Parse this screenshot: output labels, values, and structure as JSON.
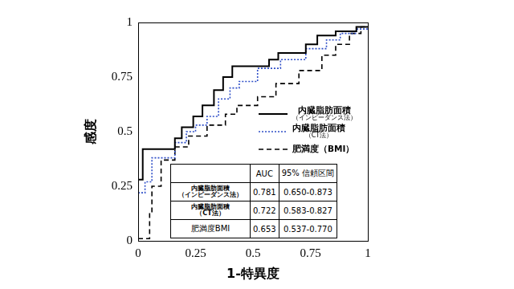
{
  "chart_data": {
    "type": "line",
    "x_label": "1-特異度",
    "y_label": "感度",
    "xlim": [
      0,
      1
    ],
    "ylim": [
      0,
      1
    ],
    "xticks": [
      0,
      0.25,
      0.5,
      0.75,
      1
    ],
    "yticks": [
      0,
      0.25,
      0.5,
      0.75,
      1
    ],
    "grid": false,
    "legend": "right",
    "series": [
      {
        "name": "内臓脂肪面積（インピーダンス法）",
        "color": "#000000",
        "line_style": "solid",
        "x": [
          0,
          0.02,
          0.02,
          0.16,
          0.16,
          0.19,
          0.19,
          0.24,
          0.24,
          0.28,
          0.28,
          0.33,
          0.33,
          0.37,
          0.37,
          0.41,
          0.41,
          0.57,
          0.57,
          0.61,
          0.61,
          0.73,
          0.73,
          0.78,
          0.78,
          0.86,
          0.86,
          0.95,
          0.95,
          1
        ],
        "values": [
          0.28,
          0.28,
          0.42,
          0.42,
          0.47,
          0.47,
          0.52,
          0.52,
          0.57,
          0.57,
          0.62,
          0.62,
          0.69,
          0.69,
          0.75,
          0.75,
          0.8,
          0.8,
          0.83,
          0.83,
          0.86,
          0.86,
          0.9,
          0.9,
          0.94,
          0.94,
          0.96,
          0.96,
          0.98,
          0.98
        ]
      },
      {
        "name": "内臓脂肪面積（CT法）",
        "color": "#2f4fc8",
        "line_style": "dotted",
        "x": [
          0,
          0.03,
          0.03,
          0.06,
          0.06,
          0.16,
          0.16,
          0.21,
          0.21,
          0.25,
          0.25,
          0.3,
          0.3,
          0.35,
          0.35,
          0.4,
          0.4,
          0.44,
          0.44,
          0.52,
          0.52,
          0.62,
          0.62,
          0.73,
          0.73,
          0.82,
          0.82,
          0.88,
          0.88,
          0.95,
          0.95,
          1
        ],
        "values": [
          0.22,
          0.22,
          0.27,
          0.27,
          0.38,
          0.38,
          0.45,
          0.45,
          0.5,
          0.5,
          0.53,
          0.53,
          0.57,
          0.57,
          0.65,
          0.65,
          0.7,
          0.7,
          0.73,
          0.73,
          0.79,
          0.79,
          0.83,
          0.83,
          0.88,
          0.88,
          0.92,
          0.92,
          0.95,
          0.95,
          0.97,
          0.97
        ]
      },
      {
        "name": "肥満度（BMI）",
        "color": "#000000",
        "line_style": "dashed",
        "x": [
          0,
          0.05,
          0.05,
          0.06,
          0.06,
          0.1,
          0.1,
          0.16,
          0.16,
          0.22,
          0.22,
          0.3,
          0.3,
          0.38,
          0.38,
          0.43,
          0.43,
          0.52,
          0.52,
          0.6,
          0.6,
          0.7,
          0.7,
          0.8,
          0.8,
          0.86,
          0.86,
          0.92,
          0.92,
          0.97,
          0.97,
          1
        ],
        "values": [
          0.01,
          0.01,
          0.13,
          0.13,
          0.25,
          0.25,
          0.37,
          0.37,
          0.43,
          0.43,
          0.48,
          0.48,
          0.53,
          0.53,
          0.58,
          0.58,
          0.62,
          0.62,
          0.66,
          0.66,
          0.72,
          0.72,
          0.78,
          0.78,
          0.85,
          0.85,
          0.9,
          0.9,
          0.95,
          0.95,
          0.98,
          0.98
        ]
      }
    ],
    "table": {
      "columns": [
        "AUC",
        "95% 信頼区間"
      ],
      "rows": [
        [
          "内臓脂肪面積（インピーダンス法）",
          0.781,
          "0.650-0.873"
        ],
        [
          "内臓脂肪面積（CT法）",
          0.722,
          "0.583-0.827"
        ],
        [
          "肥満度BMI",
          0.653,
          "0.537-0.770"
        ]
      ]
    }
  }
}
